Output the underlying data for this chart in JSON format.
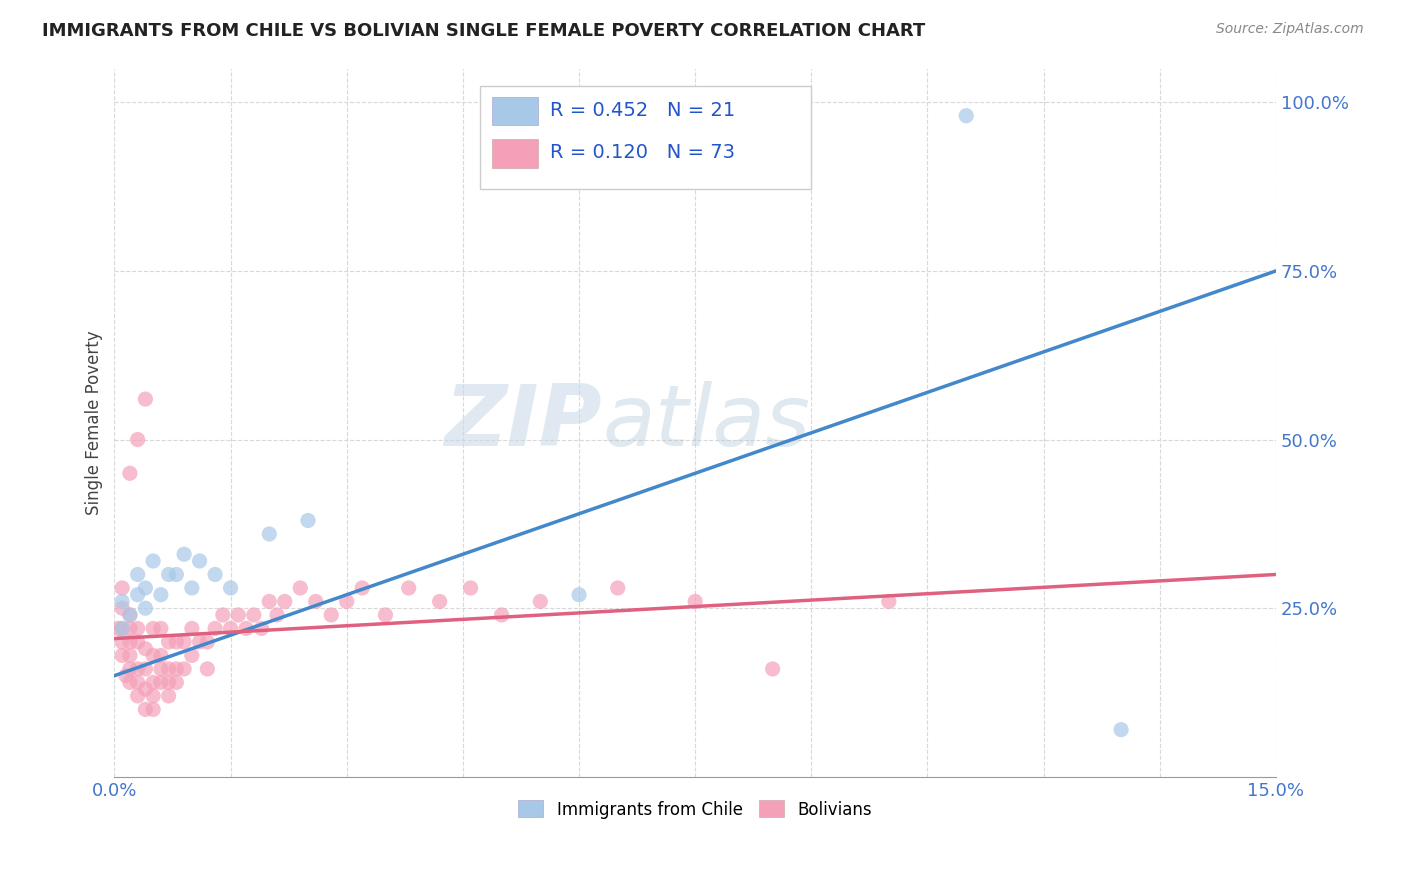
{
  "title": "IMMIGRANTS FROM CHILE VS BOLIVIAN SINGLE FEMALE POVERTY CORRELATION CHART",
  "source": "Source: ZipAtlas.com",
  "ylabel": "Single Female Poverty",
  "xlim": [
    0.0,
    0.15
  ],
  "ylim": [
    0.0,
    1.05
  ],
  "ytick_positions": [
    0.25,
    0.5,
    0.75,
    1.0
  ],
  "ytick_labels": [
    "25.0%",
    "50.0%",
    "75.0%",
    "100.0%"
  ],
  "blue_r": "0.452",
  "blue_n": "21",
  "pink_r": "0.120",
  "pink_n": "73",
  "blue_color": "#a8c8e8",
  "pink_color": "#f4a0b8",
  "blue_line_color": "#4488cc",
  "pink_line_color": "#e06080",
  "watermark_zip": "ZIP",
  "watermark_atlas": "atlas",
  "legend1_label": "Immigrants from Chile",
  "legend2_label": "Bolivians",
  "blue_line_x0": 0.0,
  "blue_line_y0": 0.15,
  "blue_line_x1": 0.15,
  "blue_line_y1": 0.75,
  "pink_line_x0": 0.0,
  "pink_line_y0": 0.205,
  "pink_line_x1": 0.15,
  "pink_line_y1": 0.3,
  "blue_scatter_x": [
    0.001,
    0.001,
    0.002,
    0.003,
    0.003,
    0.004,
    0.004,
    0.005,
    0.006,
    0.007,
    0.008,
    0.009,
    0.01,
    0.011,
    0.013,
    0.015,
    0.02,
    0.025,
    0.06,
    0.11,
    0.13
  ],
  "blue_scatter_y": [
    0.22,
    0.26,
    0.24,
    0.27,
    0.3,
    0.25,
    0.28,
    0.32,
    0.27,
    0.3,
    0.3,
    0.33,
    0.28,
    0.32,
    0.3,
    0.28,
    0.36,
    0.38,
    0.27,
    0.98,
    0.07
  ],
  "pink_scatter_x": [
    0.0005,
    0.001,
    0.001,
    0.001,
    0.001,
    0.001,
    0.0015,
    0.002,
    0.002,
    0.002,
    0.002,
    0.002,
    0.002,
    0.003,
    0.003,
    0.003,
    0.003,
    0.003,
    0.004,
    0.004,
    0.004,
    0.004,
    0.005,
    0.005,
    0.005,
    0.005,
    0.005,
    0.006,
    0.006,
    0.006,
    0.006,
    0.007,
    0.007,
    0.007,
    0.007,
    0.008,
    0.008,
    0.008,
    0.009,
    0.009,
    0.01,
    0.01,
    0.011,
    0.012,
    0.012,
    0.013,
    0.014,
    0.015,
    0.016,
    0.017,
    0.018,
    0.019,
    0.02,
    0.021,
    0.022,
    0.024,
    0.026,
    0.028,
    0.03,
    0.032,
    0.035,
    0.038,
    0.042,
    0.046,
    0.05,
    0.055,
    0.065,
    0.075,
    0.085,
    0.1,
    0.002,
    0.003,
    0.004
  ],
  "pink_scatter_y": [
    0.22,
    0.18,
    0.2,
    0.22,
    0.25,
    0.28,
    0.15,
    0.14,
    0.16,
    0.18,
    0.2,
    0.22,
    0.24,
    0.12,
    0.14,
    0.16,
    0.2,
    0.22,
    0.1,
    0.13,
    0.16,
    0.19,
    0.1,
    0.12,
    0.14,
    0.18,
    0.22,
    0.14,
    0.16,
    0.18,
    0.22,
    0.12,
    0.14,
    0.16,
    0.2,
    0.14,
    0.16,
    0.2,
    0.16,
    0.2,
    0.18,
    0.22,
    0.2,
    0.16,
    0.2,
    0.22,
    0.24,
    0.22,
    0.24,
    0.22,
    0.24,
    0.22,
    0.26,
    0.24,
    0.26,
    0.28,
    0.26,
    0.24,
    0.26,
    0.28,
    0.24,
    0.28,
    0.26,
    0.28,
    0.24,
    0.26,
    0.28,
    0.26,
    0.16,
    0.26,
    0.45,
    0.5,
    0.56
  ],
  "grid_color": "#d8d8d8",
  "bg_color": "#ffffff"
}
